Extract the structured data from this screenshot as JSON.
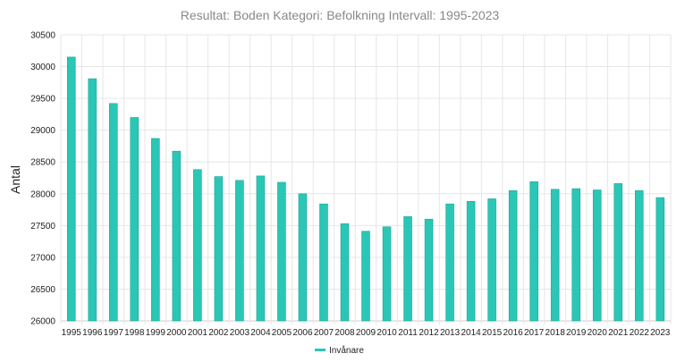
{
  "chart_data": {
    "type": "bar",
    "title": "Resultat: Boden Kategori: Befolkning Intervall: 1995-2023",
    "xlabel": "",
    "ylabel": "Antal",
    "ylim": [
      26000,
      30500
    ],
    "yticks": [
      26000,
      26500,
      27000,
      27500,
      28000,
      28500,
      29000,
      29500,
      30000,
      30500
    ],
    "grid": true,
    "legend_position": "bottom",
    "categories": [
      "1995",
      "1996",
      "1997",
      "1998",
      "1999",
      "2000",
      "2001",
      "2002",
      "2003",
      "2004",
      "2005",
      "2006",
      "2007",
      "2008",
      "2009",
      "2010",
      "2011",
      "2012",
      "2013",
      "2014",
      "2015",
      "2016",
      "2017",
      "2018",
      "2019",
      "2020",
      "2021",
      "2022",
      "2023"
    ],
    "series": [
      {
        "name": "Invånare",
        "color": "#2bc7b6",
        "values": [
          30150,
          29810,
          29420,
          29200,
          28870,
          28670,
          28380,
          28270,
          28210,
          28280,
          28180,
          28000,
          27840,
          27530,
          27410,
          27480,
          27640,
          27600,
          27840,
          27880,
          27920,
          28050,
          28190,
          28070,
          28080,
          28060,
          28160,
          28050,
          27940
        ]
      }
    ]
  }
}
